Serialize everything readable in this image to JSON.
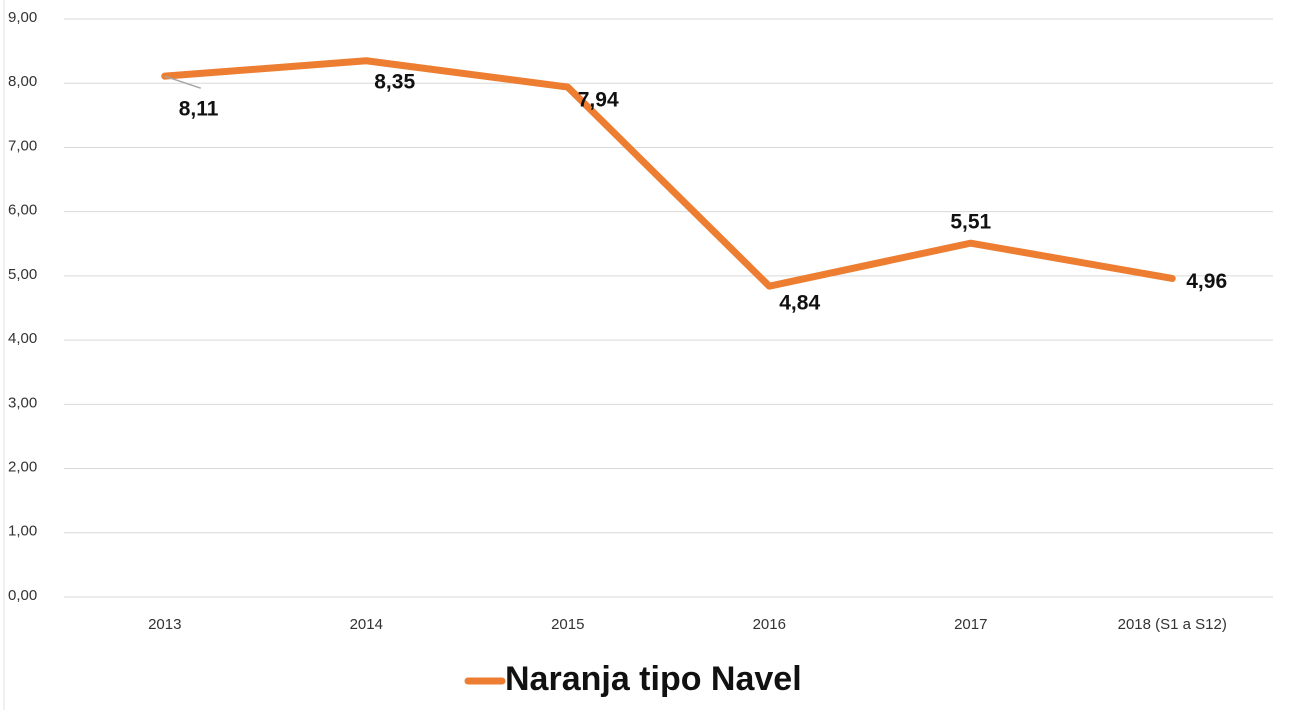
{
  "chart_data": {
    "type": "line",
    "categories": [
      "2013",
      "2014",
      "2015",
      "2016",
      "2017",
      "2018 (S1 a S12)"
    ],
    "series": [
      {
        "name": "Naranja tipo Navel",
        "color": "#ed7d31",
        "values": [
          8.11,
          8.35,
          7.94,
          4.84,
          5.51,
          4.96
        ],
        "value_labels": [
          "8,11",
          "8,35",
          "7,94",
          "4,84",
          "5,51",
          "4,96"
        ]
      }
    ],
    "ylim": [
      0,
      9
    ],
    "yticks": [
      {
        "value": 0,
        "label": "0,00"
      },
      {
        "value": 1,
        "label": "1,00"
      },
      {
        "value": 2,
        "label": "2,00"
      },
      {
        "value": 3,
        "label": "3,00"
      },
      {
        "value": 4,
        "label": "4,00"
      },
      {
        "value": 5,
        "label": "5,00"
      },
      {
        "value": 6,
        "label": "6,00"
      },
      {
        "value": 7,
        "label": "7,00"
      },
      {
        "value": 8,
        "label": "8,00"
      },
      {
        "value": 9,
        "label": "9,00"
      }
    ],
    "grid": true,
    "legend": "bottom"
  }
}
